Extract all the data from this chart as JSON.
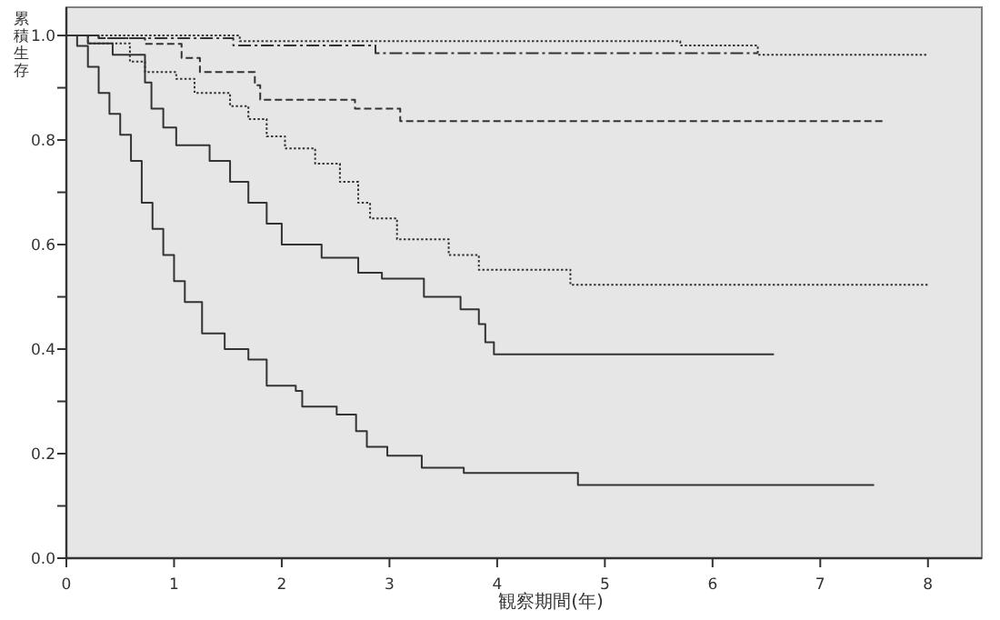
{
  "chart_data": {
    "type": "step",
    "xlabel": "観察期間(年)",
    "ylabel": "累積生存",
    "xlim": [
      0,
      8.5
    ],
    "ylim": [
      0,
      1.054
    ],
    "xticks": [
      0,
      1,
      2,
      3,
      4,
      5,
      6,
      7,
      8
    ],
    "yticks": [
      {
        "value": 0.0,
        "label": "0.0"
      },
      {
        "value": 0.1,
        "label": null
      },
      {
        "value": 0.2,
        "label": "0.2"
      },
      {
        "value": 0.3,
        "label": null
      },
      {
        "value": 0.4,
        "label": "0.4"
      },
      {
        "value": 0.5,
        "label": null
      },
      {
        "value": 0.6,
        "label": "0.6"
      },
      {
        "value": 0.7,
        "label": null
      },
      {
        "value": 0.8,
        "label": "0.8"
      },
      {
        "value": 0.9,
        "label": null
      },
      {
        "value": 1.0,
        "label": "1.0"
      }
    ],
    "grid": false,
    "marker": "none",
    "series": [
      {
        "color": "#333333",
        "line_style": "solid",
        "x": [
          0,
          0.1,
          0.2,
          0.3,
          0.4,
          0.5,
          0.6,
          0.7,
          0.8,
          0.9,
          1.0,
          1.1,
          1.26,
          1.47,
          1.69,
          1.86,
          2.13,
          2.19,
          2.51,
          2.69,
          2.79,
          2.98,
          3.3,
          3.69,
          4.75,
          7.5
        ],
        "values": [
          1.0,
          0.98,
          0.94,
          0.89,
          0.85,
          0.81,
          0.76,
          0.68,
          0.63,
          0.58,
          0.53,
          0.49,
          0.43,
          0.4,
          0.38,
          0.33,
          0.32,
          0.29,
          0.275,
          0.243,
          0.213,
          0.196,
          0.173,
          0.163,
          0.14,
          0.14
        ]
      },
      {
        "color": "#333333",
        "line_style": "solid",
        "x": [
          0,
          0.2,
          0.43,
          0.73,
          0.79,
          0.9,
          1.02,
          1.33,
          1.52,
          1.69,
          1.86,
          2.0,
          2.37,
          2.71,
          2.93,
          3.32,
          3.66,
          3.83,
          3.89,
          3.97,
          6.57
        ],
        "values": [
          1.0,
          0.985,
          0.963,
          0.91,
          0.86,
          0.824,
          0.79,
          0.76,
          0.72,
          0.68,
          0.64,
          0.6,
          0.575,
          0.546,
          0.535,
          0.5,
          0.476,
          0.448,
          0.413,
          0.39,
          0.39
        ]
      },
      {
        "color": "#333333",
        "line_style": "dotted",
        "x": [
          0,
          0.2,
          0.59,
          0.73,
          1.02,
          1.19,
          1.52,
          1.69,
          1.86,
          2.03,
          2.31,
          2.54,
          2.71,
          2.82,
          3.07,
          3.55,
          3.83,
          4.68,
          8.0
        ],
        "values": [
          1.0,
          0.985,
          0.95,
          0.93,
          0.917,
          0.89,
          0.865,
          0.84,
          0.807,
          0.784,
          0.755,
          0.72,
          0.68,
          0.65,
          0.61,
          0.58,
          0.552,
          0.523,
          0.523
        ]
      },
      {
        "color": "#333333",
        "line_style": "dashed",
        "x": [
          0,
          0.3,
          0.73,
          1.07,
          1.24,
          1.75,
          1.8,
          2.68,
          3.1,
          7.6
        ],
        "values": [
          1.0,
          0.995,
          0.984,
          0.957,
          0.93,
          0.905,
          0.877,
          0.86,
          0.836,
          0.836
        ]
      },
      {
        "color": "#333333",
        "line_style": "dotted",
        "x": [
          0,
          1.61,
          5.7,
          6.42,
          8.0
        ],
        "values": [
          1.0,
          0.989,
          0.981,
          0.963,
          0.963
        ]
      },
      {
        "color": "#333333",
        "line_style": "dashdot",
        "x": [
          0,
          0.3,
          1.55,
          2.87,
          6.42
        ],
        "values": [
          1.0,
          0.995,
          0.981,
          0.966,
          0.966
        ]
      }
    ]
  }
}
